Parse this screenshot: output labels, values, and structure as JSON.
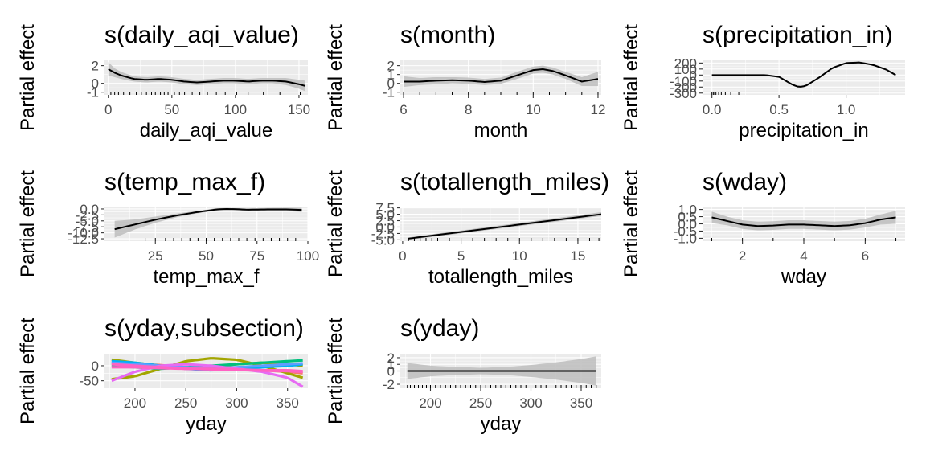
{
  "figure": {
    "ylabel": "Partial effect"
  },
  "chart_data": [
    {
      "type": "line",
      "title": "s(daily_aqi_value)",
      "xlabel": "daily_aqi_value",
      "ylabel": "Partial effect",
      "xlim": [
        -3,
        157
      ],
      "ylim": [
        -1.3,
        2.6
      ],
      "xticks": [
        0,
        50,
        100,
        150
      ],
      "xtick_labels": [
        "0",
        "50",
        "100",
        "150"
      ],
      "yticks": [
        -1,
        0,
        2
      ],
      "ytick_labels": [
        "-1",
        "0",
        "2"
      ],
      "series": [
        {
          "x": [
            0,
            5,
            10,
            20,
            30,
            40,
            50,
            60,
            70,
            80,
            90,
            100,
            110,
            120,
            130,
            140,
            150,
            155
          ],
          "y": [
            1.6,
            1.2,
            0.9,
            0.5,
            0.4,
            0.5,
            0.4,
            0.2,
            0.1,
            0.2,
            0.3,
            0.3,
            0.2,
            0.3,
            0.3,
            0.2,
            -0.1,
            -0.3
          ],
          "lower": [
            0.9,
            0.7,
            0.5,
            0.2,
            0.1,
            0.2,
            0.1,
            -0.1,
            -0.2,
            -0.1,
            0.0,
            0.0,
            -0.1,
            0.0,
            0.0,
            -0.2,
            -0.6,
            -0.9
          ],
          "upper": [
            2.4,
            1.7,
            1.3,
            0.8,
            0.7,
            0.8,
            0.7,
            0.5,
            0.4,
            0.5,
            0.6,
            0.6,
            0.5,
            0.6,
            0.6,
            0.6,
            0.4,
            0.3
          ]
        }
      ],
      "rug": [
        2,
        5,
        8,
        12,
        17,
        22,
        26,
        30,
        34,
        37,
        41,
        44,
        47,
        52,
        56,
        60,
        66,
        72,
        78,
        85,
        92,
        101,
        110,
        122,
        135,
        151
      ]
    },
    {
      "type": "line",
      "title": "s(month)",
      "xlabel": "month",
      "ylabel": "Partial effect",
      "xlim": [
        5.9,
        12.1
      ],
      "ylim": [
        -1.3,
        2.6
      ],
      "xticks": [
        6,
        8,
        10,
        12
      ],
      "xtick_labels": [
        "6",
        "8",
        "10",
        "12"
      ],
      "yticks": [
        -1,
        0,
        1,
        2
      ],
      "ytick_labels": [
        "-1",
        "0",
        "1",
        "2"
      ],
      "series": [
        {
          "x": [
            6,
            6.5,
            7,
            7.5,
            8,
            8.5,
            9,
            9.5,
            10,
            10.3,
            10.6,
            11,
            11.5,
            12
          ],
          "y": [
            0.2,
            0.2,
            0.3,
            0.35,
            0.3,
            0.15,
            0.3,
            0.9,
            1.5,
            1.6,
            1.4,
            0.9,
            0.2,
            0.5
          ],
          "lower": [
            -0.4,
            -0.2,
            -0.1,
            0.0,
            -0.05,
            -0.2,
            -0.05,
            0.5,
            1.1,
            1.2,
            1.0,
            0.5,
            -0.3,
            -0.3
          ],
          "upper": [
            0.8,
            0.6,
            0.7,
            0.7,
            0.65,
            0.5,
            0.65,
            1.3,
            1.9,
            2.0,
            1.8,
            1.3,
            0.7,
            1.3
          ]
        }
      ],
      "rug": [
        6,
        6.5,
        7,
        7.5,
        8,
        8.5,
        9,
        9.5,
        10,
        10.5,
        11,
        11.5,
        12
      ]
    },
    {
      "type": "line",
      "title": "s(precipitation_in)",
      "xlabel": "precipitation_in",
      "ylabel": "Partial effect",
      "xlim": [
        -0.07,
        1.44
      ],
      "ylim": [
        -330,
        245
      ],
      "xticks": [
        0,
        0.5,
        1.0
      ],
      "xtick_labels": [
        "0.0",
        "0.5",
        "1.0"
      ],
      "yticks": [
        -300,
        -200,
        -100,
        0,
        100,
        200
      ],
      "ytick_labels": [
        "-300",
        "-200",
        "-100",
        "0",
        "100",
        "200"
      ],
      "series": [
        {
          "x": [
            0,
            0.2,
            0.4,
            0.5,
            0.6,
            0.65,
            0.7,
            0.8,
            0.9,
            1.0,
            1.1,
            1.2,
            1.3,
            1.37
          ],
          "y": [
            0,
            0,
            0,
            -30,
            -160,
            -200,
            -180,
            -40,
            120,
            200,
            210,
            170,
            90,
            0
          ],
          "lower": [
            -5,
            -5,
            -5,
            -40,
            -175,
            -215,
            -195,
            -55,
            105,
            185,
            195,
            155,
            75,
            -20
          ],
          "upper": [
            5,
            5,
            5,
            -20,
            -145,
            -185,
            -165,
            -25,
            135,
            215,
            225,
            185,
            105,
            20
          ]
        }
      ],
      "rug": [
        0,
        0.01,
        0.02,
        0.03,
        0.05,
        0.07,
        0.1,
        0.14,
        0.2
      ]
    },
    {
      "type": "line",
      "title": "s(temp_max_f)",
      "xlabel": "temp_max_f",
      "ylabel": "Partial effect",
      "xlim": [
        0,
        100
      ],
      "ylim": [
        -13.5,
        1.0
      ],
      "xticks": [
        25,
        50,
        75,
        100
      ],
      "xtick_labels": [
        "25",
        "50",
        "75",
        "100"
      ],
      "yticks": [
        -12.5,
        -10.0,
        -7.5,
        -5.0,
        -2.5,
        0.0
      ],
      "ytick_labels": [
        "-12.5",
        "-10.0",
        "-7.5",
        "-5.0",
        "-2.5",
        "0.0"
      ],
      "series": [
        {
          "x": [
            5,
            15,
            25,
            35,
            45,
            55,
            60,
            65,
            70,
            80,
            90,
            97
          ],
          "y": [
            -8.5,
            -6.5,
            -4.5,
            -2.8,
            -1.4,
            -0.2,
            0.0,
            -0.1,
            -0.3,
            -0.2,
            -0.2,
            -0.4
          ],
          "lower": [
            -12.0,
            -8.6,
            -5.8,
            -3.6,
            -1.9,
            -0.7,
            -0.4,
            -0.5,
            -0.8,
            -0.8,
            -0.9,
            -1.3
          ],
          "upper": [
            -5.0,
            -4.4,
            -3.2,
            -2.0,
            -0.9,
            0.3,
            0.4,
            0.3,
            0.2,
            0.4,
            0.5,
            0.5
          ]
        }
      ],
      "rug": [
        20,
        25,
        30,
        34,
        38,
        42,
        46,
        50,
        54,
        58,
        62,
        66,
        70,
        74,
        78,
        82,
        86,
        90,
        94
      ]
    },
    {
      "type": "line",
      "title": "s(totallength_miles)",
      "xlabel": "totallength_miles",
      "ylabel": "Partial effect",
      "xlim": [
        -0.2,
        17
      ],
      "ylim": [
        -5.5,
        8.0
      ],
      "xticks": [
        0,
        5,
        10,
        15
      ],
      "xtick_labels": [
        "0",
        "5",
        "10",
        "15"
      ],
      "yticks": [
        -5.0,
        -2.5,
        0.0,
        2.5,
        5.0,
        7.5
      ],
      "ytick_labels": [
        "-5.0",
        "-2.5",
        "0.0",
        "2.5",
        "5.0",
        "7.5"
      ],
      "series": [
        {
          "x": [
            0.5,
            17
          ],
          "y": [
            -4.5,
            5.0
          ],
          "lower": [
            -5.0,
            4.3
          ],
          "upper": [
            -4.0,
            5.8
          ]
        }
      ],
      "rug": [
        0.5,
        1,
        1.5,
        2,
        2.5,
        3,
        4,
        5,
        6,
        7,
        8,
        9,
        10,
        11,
        12,
        13,
        14,
        15,
        16,
        16.8
      ]
    },
    {
      "type": "line",
      "title": "s(wday)",
      "xlabel": "wday",
      "ylabel": "Partial effect",
      "xlim": [
        0.7,
        7.3
      ],
      "ylim": [
        -1.2,
        1.2
      ],
      "xticks": [
        2,
        4,
        6
      ],
      "xtick_labels": [
        "2",
        "4",
        "6"
      ],
      "yticks": [
        -1.0,
        -0.5,
        0.0,
        0.5,
        1.0
      ],
      "ytick_labels": [
        "-1.0",
        "-0.5",
        "0.0",
        "0.5",
        "1.0"
      ],
      "series": [
        {
          "x": [
            1,
            1.5,
            2,
            2.5,
            3,
            3.5,
            4,
            4.5,
            5,
            5.5,
            6,
            6.5,
            7
          ],
          "y": [
            0.45,
            0.2,
            -0.05,
            -0.15,
            -0.12,
            -0.05,
            -0.05,
            -0.1,
            -0.15,
            -0.1,
            0.05,
            0.3,
            0.45
          ],
          "lower": [
            0.05,
            -0.1,
            -0.35,
            -0.45,
            -0.42,
            -0.35,
            -0.35,
            -0.4,
            -0.45,
            -0.4,
            -0.25,
            -0.05,
            0.0
          ],
          "upper": [
            0.85,
            0.5,
            0.25,
            0.15,
            0.18,
            0.25,
            0.25,
            0.2,
            0.15,
            0.2,
            0.35,
            0.65,
            0.9
          ]
        }
      ],
      "rug": [
        1,
        2,
        3,
        4,
        5,
        6,
        7
      ]
    },
    {
      "type": "line",
      "title": "s(yday,subsection)",
      "xlabel": "yday",
      "ylabel": "Partial effect",
      "xlim": [
        170,
        370
      ],
      "ylim": [
        -75,
        40
      ],
      "xticks": [
        200,
        250,
        300,
        350
      ],
      "xtick_labels": [
        "200",
        "250",
        "300",
        "350"
      ],
      "yticks": [
        -50,
        0
      ],
      "ytick_labels": [
        "-50",
        "0"
      ],
      "series": [
        {
          "color": "#F8766D",
          "x": [
            177,
            200,
            225,
            250,
            275,
            300,
            325,
            350,
            365
          ],
          "y": [
            5,
            5,
            2,
            -5,
            -10,
            -12,
            -15,
            -20,
            -25
          ]
        },
        {
          "color": "#A3A500",
          "x": [
            177,
            200,
            225,
            250,
            275,
            300,
            325,
            350,
            365
          ],
          "y": [
            -45,
            -35,
            -10,
            15,
            25,
            20,
            0,
            -25,
            -40
          ]
        },
        {
          "color": "#A3A500",
          "x": [
            177,
            200,
            225,
            250,
            275,
            300,
            325,
            350,
            365
          ],
          "y": [
            20,
            10,
            0,
            -10,
            -5,
            5,
            10,
            5,
            0
          ]
        },
        {
          "color": "#00BF7D",
          "x": [
            177,
            200,
            225,
            250,
            275,
            300,
            325,
            350,
            365
          ],
          "y": [
            0,
            -5,
            -10,
            -5,
            0,
            5,
            10,
            15,
            18
          ]
        },
        {
          "color": "#00B0F6",
          "x": [
            177,
            200,
            225,
            250,
            275,
            300,
            325,
            350,
            365
          ],
          "y": [
            15,
            10,
            0,
            -10,
            -15,
            -10,
            -5,
            0,
            5
          ]
        },
        {
          "color": "#619CFF",
          "x": [
            177,
            200,
            225,
            250,
            275,
            300,
            325,
            350,
            365
          ],
          "y": [
            10,
            5,
            0,
            -5,
            -8,
            -5,
            0,
            5,
            8
          ]
        },
        {
          "color": "#E76BF3",
          "x": [
            177,
            200,
            225,
            250,
            275,
            300,
            325,
            350,
            365
          ],
          "y": [
            -50,
            -20,
            0,
            5,
            0,
            -10,
            -20,
            -40,
            -70
          ]
        },
        {
          "color": "#FF61C3",
          "x": [
            177,
            200,
            225,
            250,
            275,
            300,
            325,
            350,
            365
          ],
          "y": [
            5,
            0,
            -5,
            -10,
            -12,
            -14,
            -16,
            -18,
            -20
          ]
        },
        {
          "color": "#FF61C3",
          "x": [
            177,
            200,
            225,
            250,
            275,
            300,
            325,
            350,
            365
          ],
          "y": [
            -5,
            -5,
            -8,
            -10,
            -10,
            -12,
            -15,
            -15,
            -18
          ]
        }
      ],
      "rug": []
    },
    {
      "type": "line",
      "title": "s(yday)",
      "xlabel": "yday",
      "ylabel": "Partial effect",
      "xlim": [
        170,
        370
      ],
      "ylim": [
        -2.6,
        2.6
      ],
      "xticks": [
        200,
        250,
        300,
        350
      ],
      "xtick_labels": [
        "200",
        "250",
        "300",
        "350"
      ],
      "yticks": [
        -2,
        0,
        1,
        2
      ],
      "ytick_labels": [
        "-2",
        "0",
        "1",
        "2"
      ],
      "series": [
        {
          "x": [
            177,
            200,
            225,
            250,
            275,
            300,
            325,
            350,
            365
          ],
          "y": [
            0,
            0,
            0,
            0,
            0,
            0,
            0,
            0,
            0
          ],
          "lower": [
            -1.2,
            -0.8,
            -0.6,
            -0.5,
            -0.6,
            -0.9,
            -1.3,
            -1.8,
            -2.2
          ],
          "upper": [
            1.2,
            0.8,
            0.6,
            0.5,
            0.6,
            0.9,
            1.3,
            1.8,
            2.2
          ]
        }
      ],
      "rug": [
        177,
        180,
        184,
        188,
        192,
        196,
        200,
        205,
        210,
        215,
        220,
        225,
        230,
        235,
        240,
        245,
        250,
        255,
        260,
        265,
        270,
        275,
        280,
        285,
        290,
        295,
        300,
        305,
        310,
        315,
        320,
        325,
        330,
        335,
        340,
        345,
        350,
        355,
        360,
        365
      ]
    }
  ]
}
